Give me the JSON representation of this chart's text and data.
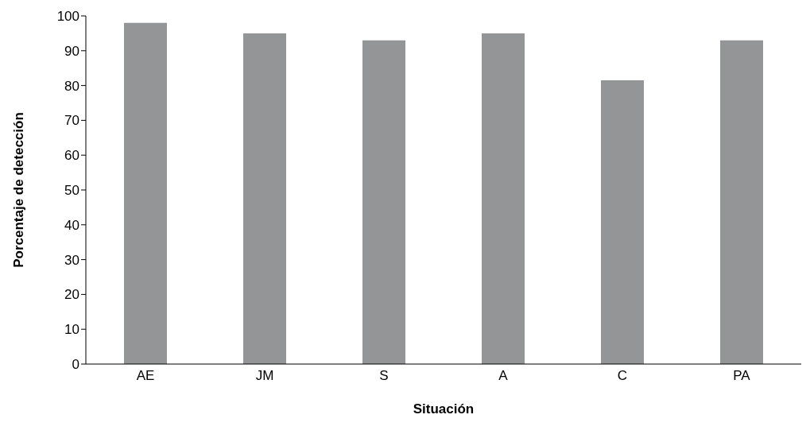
{
  "chart_data": {
    "type": "bar",
    "xlabel": "Situación",
    "ylabel": "Porcentaje de detección",
    "categories": [
      "AE",
      "JM",
      "S",
      "A",
      "C",
      "PA"
    ],
    "values": [
      98,
      95,
      93,
      95,
      81.5,
      93
    ],
    "color": "#939597",
    "ylim": [
      0,
      100
    ],
    "yticks": [
      0,
      10,
      20,
      30,
      40,
      50,
      60,
      70,
      80,
      90,
      100
    ],
    "grid": false
  }
}
